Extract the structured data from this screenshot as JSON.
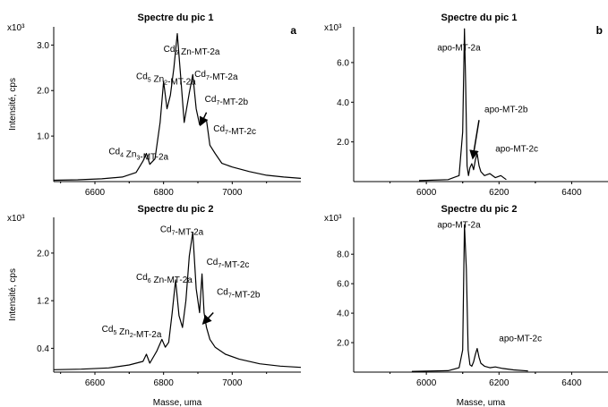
{
  "figure": {
    "panel_letters": [
      "a",
      "b"
    ]
  },
  "chart_data": [
    {
      "type": "line",
      "title": "Spectre du pic 1",
      "xlabel": "",
      "ylabel": "Intensité, cps",
      "y_multiplier": "x10³",
      "xlim": [
        6480,
        7200
      ],
      "ylim": [
        0,
        3.4
      ],
      "xticks": [
        6600,
        6800,
        7000
      ],
      "yticks": [
        1.0,
        2.0,
        3.0
      ],
      "ytick_labels": [
        "1.0",
        "2.0",
        "3.0"
      ],
      "x": [
        6480,
        6550,
        6620,
        6680,
        6720,
        6740,
        6750,
        6760,
        6775,
        6790,
        6800,
        6810,
        6820,
        6830,
        6840,
        6850,
        6860,
        6875,
        6885,
        6895,
        6905,
        6915,
        6925,
        6935,
        6950,
        6970,
        7000,
        7050,
        7100,
        7150,
        7200
      ],
      "y": [
        0.03,
        0.04,
        0.06,
        0.1,
        0.2,
        0.45,
        0.62,
        0.38,
        0.5,
        1.3,
        2.2,
        1.6,
        1.9,
        2.5,
        3.25,
        2.3,
        1.3,
        1.95,
        2.35,
        1.6,
        1.25,
        1.3,
        1.35,
        0.8,
        0.62,
        0.4,
        0.32,
        0.22,
        0.14,
        0.1,
        0.07
      ],
      "annotations": [
        {
          "pre": "Cd",
          "s1": "4",
          "mid": " Zn",
          "s2": "3",
          "post": "-MT-2a",
          "x": 6640,
          "y": 0.6
        },
        {
          "pre": "Cd",
          "s1": "5",
          "mid": " Zn",
          "s2": "2",
          "post": "-MT-2a",
          "x": 6720,
          "y": 2.25
        },
        {
          "pre": "Cd",
          "s1": "6",
          "mid": " Zn-MT-2a",
          "s2": "",
          "post": "",
          "x": 6800,
          "y": 2.85
        },
        {
          "pre": "Cd",
          "s1": "7",
          "mid": "-MT-2a",
          "s2": "",
          "post": "",
          "x": 6890,
          "y": 2.3
        },
        {
          "pre": "Cd",
          "s1": "7",
          "mid": "-MT-2b",
          "s2": "",
          "post": "",
          "x": 6920,
          "y": 1.75
        },
        {
          "pre": "Cd",
          "s1": "7",
          "mid": "-MT-2c",
          "s2": "",
          "post": "",
          "x": 6945,
          "y": 1.1
        }
      ],
      "arrow": {
        "from": [
          6925,
          1.52
        ],
        "to": [
          6908,
          1.25
        ]
      }
    },
    {
      "type": "line",
      "title": "Spectre du pic 1",
      "xlabel": "",
      "ylabel": "",
      "y_multiplier": "x10³",
      "xlim": [
        5800,
        6500
      ],
      "ylim": [
        0,
        7.8
      ],
      "xticks": [
        6000,
        6200,
        6400
      ],
      "yticks": [
        2.0,
        4.0,
        6.0
      ],
      "ytick_labels": [
        "2.0",
        "4.0",
        "6.0"
      ],
      "x": [
        5980,
        6060,
        6090,
        6100,
        6105,
        6108,
        6112,
        6116,
        6120,
        6125,
        6130,
        6135,
        6140,
        6145,
        6150,
        6160,
        6175,
        6190,
        6205,
        6220
      ],
      "y": [
        0.05,
        0.1,
        0.3,
        2.5,
        7.7,
        5.0,
        0.8,
        0.3,
        0.7,
        0.9,
        0.6,
        1.1,
        1.4,
        0.8,
        0.5,
        0.3,
        0.4,
        0.2,
        0.3,
        0.1
      ],
      "annotations": [
        {
          "pre": "apo-MT-2a",
          "s1": "",
          "mid": "",
          "s2": "",
          "post": "",
          "x": 6030,
          "y": 6.6
        },
        {
          "pre": "apo-MT-2b",
          "s1": "",
          "mid": "",
          "s2": "",
          "post": "",
          "x": 6160,
          "y": 3.5
        },
        {
          "pre": "apo-MT-2c",
          "s1": "",
          "mid": "",
          "s2": "",
          "post": "",
          "x": 6190,
          "y": 1.5
        }
      ],
      "arrow": {
        "from": [
          6145,
          3.1
        ],
        "to": [
          6128,
          1.2
        ]
      }
    },
    {
      "type": "line",
      "title": "Spectre du pic 2",
      "xlabel": "Masse, uma",
      "ylabel": "Intensité, cps",
      "y_multiplier": "x10³",
      "xlim": [
        6480,
        7200
      ],
      "ylim": [
        0,
        2.6
      ],
      "xticks": [
        6600,
        6800,
        7000
      ],
      "yticks": [
        0.4,
        1.2,
        2.0
      ],
      "ytick_labels": [
        "0.4",
        "1.2",
        "2.0"
      ],
      "x": [
        6480,
        6560,
        6640,
        6700,
        6740,
        6750,
        6760,
        6780,
        6795,
        6805,
        6815,
        6825,
        6835,
        6845,
        6855,
        6865,
        6875,
        6885,
        6895,
        6905,
        6912,
        6918,
        6925,
        6935,
        6950,
        6980,
        7020,
        7080,
        7140,
        7200
      ],
      "y": [
        0.04,
        0.05,
        0.07,
        0.12,
        0.18,
        0.3,
        0.15,
        0.35,
        0.55,
        0.42,
        0.5,
        1.0,
        1.55,
        0.95,
        0.75,
        1.2,
        1.95,
        2.35,
        1.4,
        1.0,
        1.65,
        1.0,
        0.75,
        0.55,
        0.42,
        0.3,
        0.22,
        0.14,
        0.1,
        0.08
      ],
      "annotations": [
        {
          "pre": "Cd",
          "s1": "5",
          "mid": " Zn",
          "s2": "2",
          "post": "-MT-2a",
          "x": 6620,
          "y": 0.68
        },
        {
          "pre": "Cd",
          "s1": "6",
          "mid": " Zn-MT-2a",
          "s2": "",
          "post": "",
          "x": 6720,
          "y": 1.55
        },
        {
          "pre": "Cd",
          "s1": "7",
          "mid": "-MT-2a",
          "s2": "",
          "post": "",
          "x": 6790,
          "y": 2.35
        },
        {
          "pre": "Cd",
          "s1": "7",
          "mid": "-MT-2c",
          "s2": "",
          "post": "",
          "x": 6925,
          "y": 1.8
        },
        {
          "pre": "Cd",
          "s1": "7",
          "mid": "-MT-2b",
          "s2": "",
          "post": "",
          "x": 6955,
          "y": 1.3
        }
      ],
      "arrow": {
        "from": [
          6945,
          1.0
        ],
        "to": [
          6916,
          0.82
        ]
      }
    },
    {
      "type": "line",
      "title": "Spectre du pic 2",
      "xlabel": "Masse, uma",
      "ylabel": "",
      "y_multiplier": "x10³",
      "xlim": [
        5800,
        6500
      ],
      "ylim": [
        0,
        10.5
      ],
      "xticks": [
        6000,
        6200,
        6400
      ],
      "yticks": [
        2.0,
        4.0,
        6.0,
        8.0
      ],
      "ytick_labels": [
        "2.0",
        "4.0",
        "6.0",
        "8.0"
      ],
      "x": [
        5960,
        6060,
        6090,
        6100,
        6105,
        6110,
        6115,
        6120,
        6125,
        6130,
        6135,
        6140,
        6145,
        6150,
        6160,
        6175,
        6190,
        6210,
        6240,
        6280
      ],
      "y": [
        0.05,
        0.1,
        0.3,
        1.5,
        10.0,
        7.0,
        1.5,
        0.5,
        0.4,
        0.7,
        1.2,
        1.6,
        1.0,
        0.6,
        0.4,
        0.3,
        0.35,
        0.25,
        0.15,
        0.08
      ],
      "annotations": [
        {
          "pre": "apo-MT-2a",
          "s1": "",
          "mid": "",
          "s2": "",
          "post": "",
          "x": 6030,
          "y": 9.8
        },
        {
          "pre": "apo-MT-2c",
          "s1": "",
          "mid": "",
          "s2": "",
          "post": "",
          "x": 6200,
          "y": 2.1
        }
      ],
      "arrow": null
    }
  ]
}
